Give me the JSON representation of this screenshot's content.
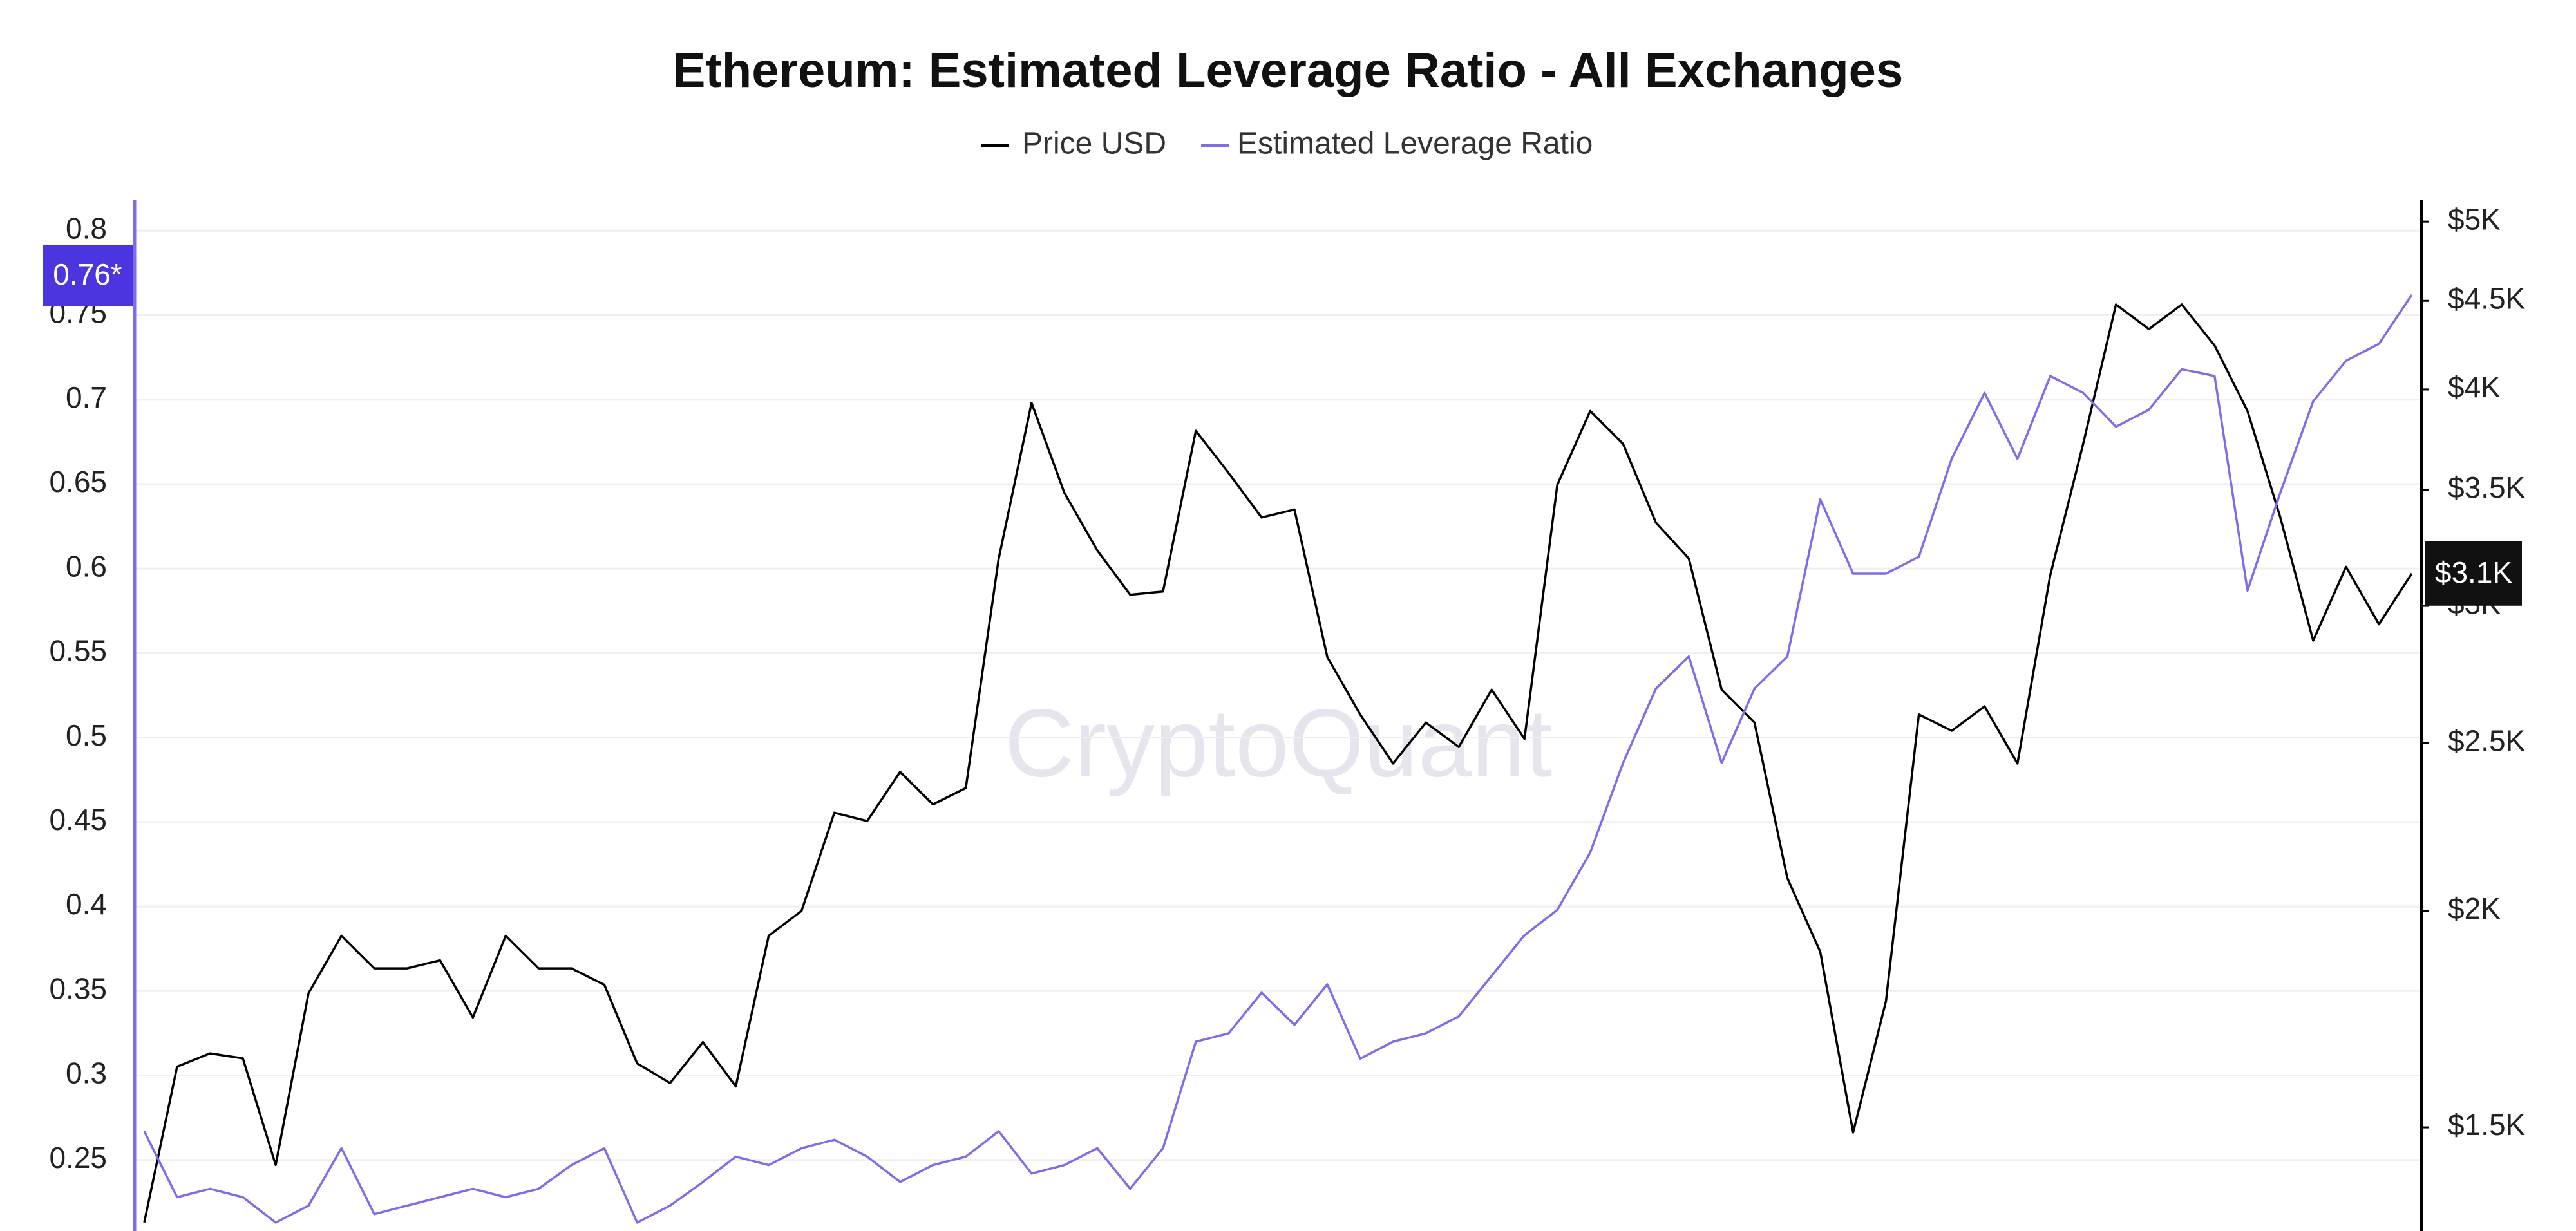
{
  "chart_data": {
    "type": "line",
    "title": "Ethereum: Estimated Leverage Ratio - All Exchanges",
    "watermark": "CryptoQuant",
    "ylim": [
      0.208,
      0.818
    ],
    "yticks": [
      0.25,
      0.3,
      0.35,
      0.4,
      0.45,
      0.5,
      0.55,
      0.6,
      0.65,
      0.7,
      0.75,
      0.8
    ],
    "y2lim": [
      1307,
      5144
    ],
    "y2scale": "log",
    "y2ticks": [
      {
        "value": 1500,
        "label": "$1.5K"
      },
      {
        "value": 2000,
        "label": "$2K"
      },
      {
        "value": 2500,
        "label": "$2.5K"
      },
      {
        "value": 3000,
        "label": "$3K"
      },
      {
        "value": 3500,
        "label": "$3.5K"
      },
      {
        "value": 4000,
        "label": "$4K"
      },
      {
        "value": 4500,
        "label": "$4.5K"
      },
      {
        "value": 5000,
        "label": "$5K"
      }
    ],
    "grid": true,
    "legend": "top",
    "series": [
      {
        "name": "Price USD",
        "color": "#000000",
        "axis": "y2",
        "last_label": "$3.1K",
        "values": [
          1322,
          1626,
          1655,
          1644,
          1427,
          1793,
          1935,
          1853,
          1853,
          1873,
          1736,
          1935,
          1853,
          1853,
          1813,
          1633,
          1591,
          1680,
          1584,
          1935,
          2000,
          2279,
          2254,
          2406,
          2304,
          2355,
          3195,
          3929,
          3486,
          3230,
          3045,
          3058,
          3786,
          3579,
          3374,
          3410,
          2803,
          2597,
          2433,
          2569,
          2487,
          2684,
          2514,
          3524,
          3887,
          3721,
          3351,
          3195,
          2684,
          2569,
          2089,
          1894,
          1490,
          1774,
          2597,
          2541,
          2625,
          2433,
          3126,
          3721,
          4478,
          4334,
          4478,
          4241,
          3887,
          3374,
          2865,
          3160,
          2928,
          3132
        ]
      },
      {
        "name": "Estimated Leverage Ratio",
        "color": "#7b6ee8",
        "axis": "y",
        "last_label": "0.76*",
        "values": [
          0.267,
          0.228,
          0.233,
          0.228,
          0.213,
          0.223,
          0.257,
          0.218,
          0.223,
          0.228,
          0.233,
          0.228,
          0.233,
          0.247,
          0.257,
          0.213,
          0.223,
          0.237,
          0.252,
          0.247,
          0.257,
          0.262,
          0.252,
          0.237,
          0.247,
          0.252,
          0.267,
          0.242,
          0.247,
          0.257,
          0.233,
          0.257,
          0.32,
          0.325,
          0.349,
          0.33,
          0.354,
          0.31,
          0.32,
          0.325,
          0.335,
          0.359,
          0.383,
          0.398,
          0.432,
          0.485,
          0.529,
          0.548,
          0.485,
          0.529,
          0.548,
          0.641,
          0.597,
          0.597,
          0.607,
          0.665,
          0.704,
          0.665,
          0.714,
          0.704,
          0.684,
          0.694,
          0.718,
          0.714,
          0.587,
          0.645,
          0.699,
          0.723,
          0.733,
          0.762
        ]
      }
    ]
  }
}
